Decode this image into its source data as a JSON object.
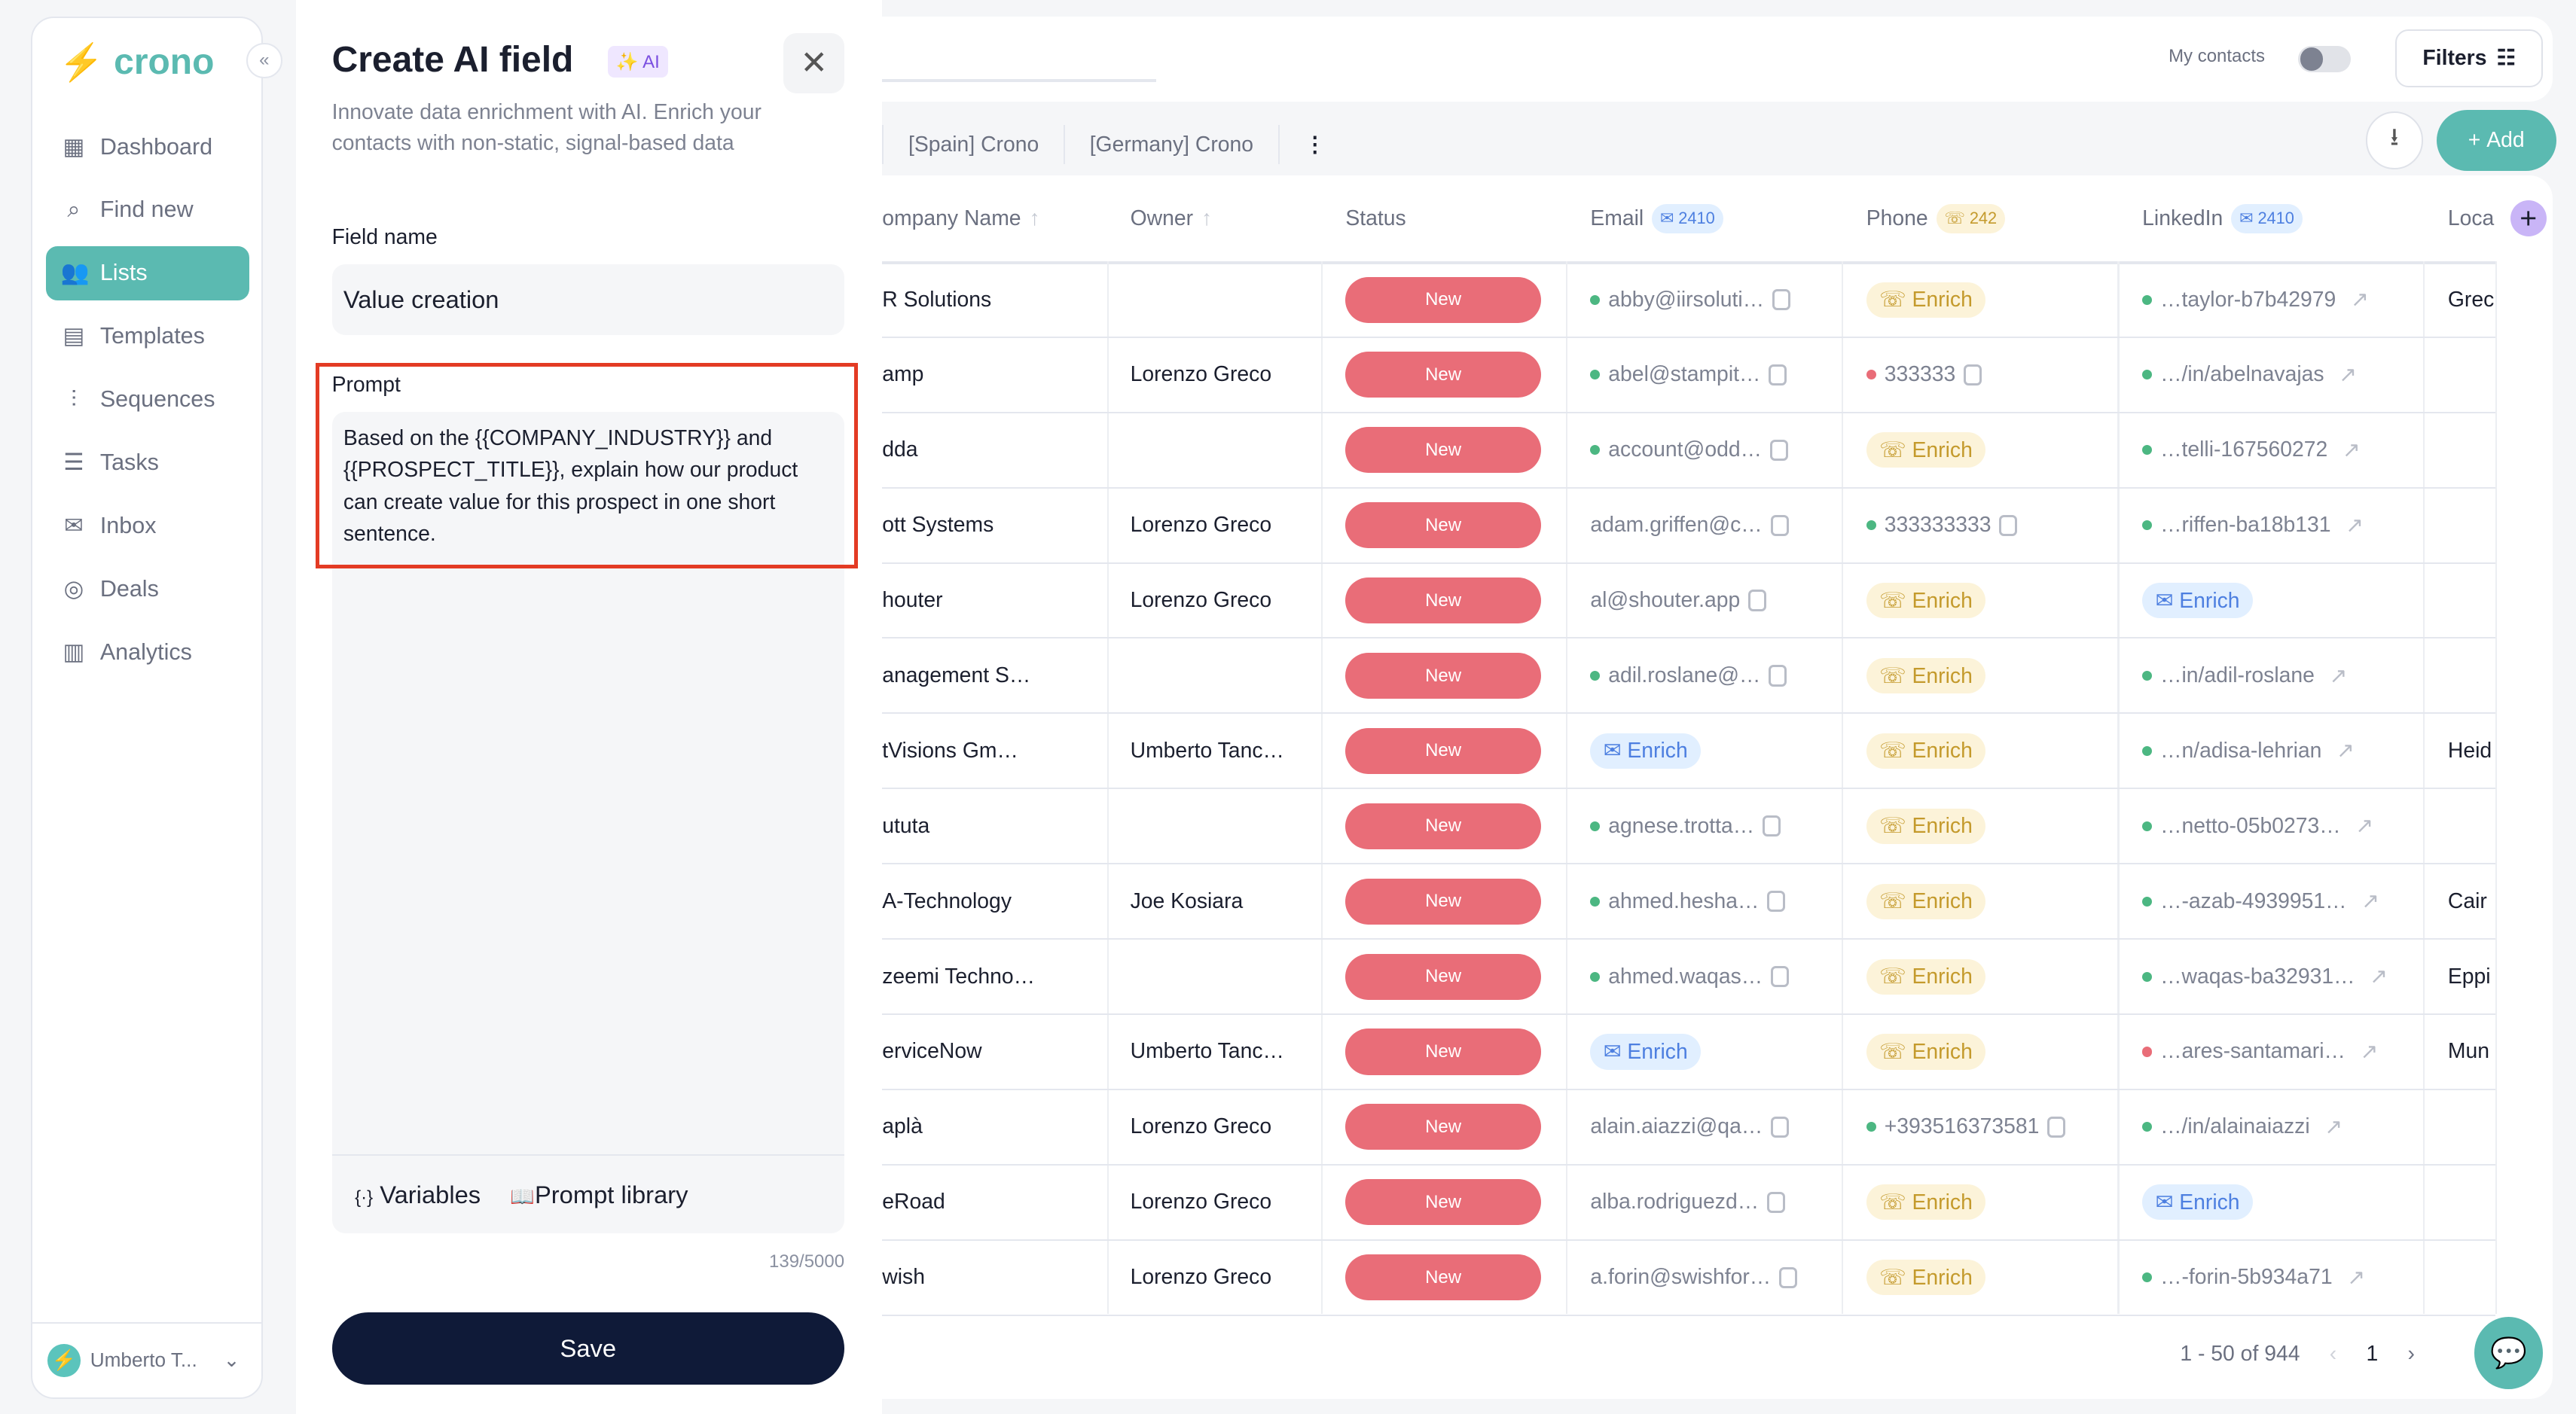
{
  "sidebar": {
    "logo": "crono",
    "collapse_icon": "«",
    "items": [
      {
        "label": "Dashboard",
        "icon": "▦"
      },
      {
        "label": "Find new",
        "icon": "⌕"
      },
      {
        "label": "Lists",
        "icon": "👥",
        "active": true
      },
      {
        "label": "Templates",
        "icon": "▤"
      },
      {
        "label": "Sequences",
        "icon": "⫶"
      },
      {
        "label": "Tasks",
        "icon": "☰"
      },
      {
        "label": "Inbox",
        "icon": "✉"
      },
      {
        "label": "Deals",
        "icon": "◎"
      },
      {
        "label": "Analytics",
        "icon": "▥"
      }
    ],
    "user": "Umberto T..."
  },
  "panel": {
    "title": "Create AI field",
    "badge": "AI",
    "description": "Innovate data enrichment with AI. Enrich your contacts with non-static, signal-based data",
    "field_name_label": "Field name",
    "field_name_value": "Value creation",
    "prompt_label": "Prompt",
    "prompt_value": "Based on the {{COMPANY_INDUSTRY}} and {{PROSPECT_TITLE}}, explain how our product can create value for this prospect in one short sentence.",
    "variables_label": "Variables",
    "prompt_library_label": "Prompt library",
    "counter": "139/5000",
    "save_label": "Save"
  },
  "top": {
    "my_contacts": "My contacts",
    "filters": "Filters",
    "tabs": [
      "[Spain] Crono",
      "[Germany] Crono"
    ],
    "add": "Add"
  },
  "colors": {
    "accent": "#5bbab1",
    "status_new": "#e96d78",
    "dot_green": "#4cb782",
    "dot_red": "#e96d78",
    "highlight": "#e33b24"
  },
  "table": {
    "headers": {
      "company": "ompany Name",
      "owner": "Owner",
      "status": "Status",
      "email": "Email",
      "email_count": "2410",
      "phone": "Phone",
      "phone_count": "242",
      "linkedin": "LinkedIn",
      "linkedin_count": "2410",
      "location": "Loca"
    },
    "enrich_label": "Enrich",
    "rows": [
      {
        "company": "R Solutions",
        "owner": "",
        "status": "New",
        "email": {
          "v": "abby@iirsoluti…",
          "dot": "green"
        },
        "phone": {
          "enrich": true
        },
        "linkedin": {
          "v": "…taylor-b7b42979",
          "dot": "green"
        },
        "location": "Grec"
      },
      {
        "company": "amp",
        "owner": "Lorenzo Greco",
        "status": "New",
        "email": {
          "v": "abel@stampit…",
          "dot": "green"
        },
        "phone": {
          "v": "333333",
          "dot": "red"
        },
        "linkedin": {
          "v": "…/in/abelnavajas",
          "dot": "green"
        },
        "location": ""
      },
      {
        "company": "dda",
        "owner": "",
        "status": "New",
        "email": {
          "v": "account@odd…",
          "dot": "green"
        },
        "phone": {
          "enrich": true
        },
        "linkedin": {
          "v": "…telli-167560272",
          "dot": "green"
        },
        "location": ""
      },
      {
        "company": "ott Systems",
        "owner": "Lorenzo Greco",
        "status": "New",
        "email": {
          "v": "adam.griffen@c…"
        },
        "phone": {
          "v": "333333333",
          "dot": "green"
        },
        "linkedin": {
          "v": "…riffen-ba18b131",
          "dot": "green"
        },
        "location": ""
      },
      {
        "company": "houter",
        "owner": "Lorenzo Greco",
        "status": "New",
        "email": {
          "v": "al@shouter.app"
        },
        "phone": {
          "enrich": true
        },
        "linkedin": {
          "enrich": true
        },
        "location": ""
      },
      {
        "company": "anagement S…",
        "owner": "",
        "status": "New",
        "email": {
          "v": "adil.roslane@…",
          "dot": "green"
        },
        "phone": {
          "enrich": true
        },
        "linkedin": {
          "v": "…in/adil-roslane",
          "dot": "green"
        },
        "location": ""
      },
      {
        "company": "tVisions Gm…",
        "owner": "Umberto Tanc…",
        "status": "New",
        "email": {
          "enrich": true
        },
        "phone": {
          "enrich": true
        },
        "linkedin": {
          "v": "…n/adisa-lehrian",
          "dot": "green"
        },
        "location": "Heid"
      },
      {
        "company": "ututa",
        "owner": "",
        "status": "New",
        "email": {
          "v": "agnese.trotta…",
          "dot": "green"
        },
        "phone": {
          "enrich": true
        },
        "linkedin": {
          "v": "…netto-05b0273…",
          "dot": "green"
        },
        "location": ""
      },
      {
        "company": "A-Technology",
        "owner": "Joe Kosiara",
        "status": "New",
        "email": {
          "v": "ahmed.hesha…",
          "dot": "green"
        },
        "phone": {
          "enrich": true
        },
        "linkedin": {
          "v": "…-azab-4939951…",
          "dot": "green"
        },
        "location": "Cair"
      },
      {
        "company": "zeemi Techno…",
        "owner": "",
        "status": "New",
        "email": {
          "v": "ahmed.waqas…",
          "dot": "green"
        },
        "phone": {
          "enrich": true
        },
        "linkedin": {
          "v": "…waqas-ba32931…",
          "dot": "green"
        },
        "location": "Eppi"
      },
      {
        "company": "erviceNow",
        "owner": "Umberto Tanc…",
        "status": "New",
        "email": {
          "enrich": true
        },
        "phone": {
          "enrich": true
        },
        "linkedin": {
          "v": "…ares-santamari…",
          "dot": "red"
        },
        "location": "Mun"
      },
      {
        "company": "aplà",
        "owner": "Lorenzo Greco",
        "status": "New",
        "email": {
          "v": "alain.aiazzi@qa…"
        },
        "phone": {
          "v": "+393516373581",
          "dot": "green"
        },
        "linkedin": {
          "v": "…/in/alainaiazzi",
          "dot": "green"
        },
        "location": ""
      },
      {
        "company": "eRoad",
        "owner": "Lorenzo Greco",
        "status": "New",
        "email": {
          "v": "alba.rodriguezd…"
        },
        "phone": {
          "enrich": true
        },
        "linkedin": {
          "enrich": true
        },
        "location": ""
      },
      {
        "company": "wish",
        "owner": "Lorenzo Greco",
        "status": "New",
        "email": {
          "v": "a.forin@swishfor…"
        },
        "phone": {
          "enrich": true
        },
        "linkedin": {
          "v": "…-forin-5b934a71",
          "dot": "green"
        },
        "location": ""
      }
    ]
  },
  "pagination": {
    "range": "1 - 50 of 944",
    "page": "1"
  }
}
